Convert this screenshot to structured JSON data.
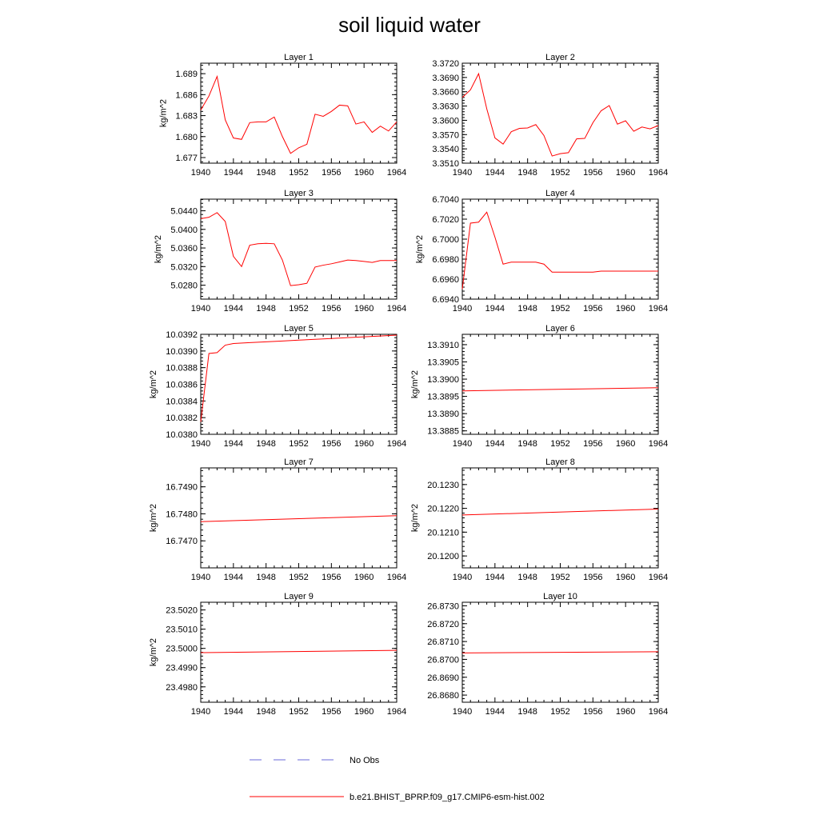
{
  "title": "soil liquid water",
  "legend": {
    "obs_label": "No Obs",
    "obs_color": "#6a6ad8",
    "model_label": "b.e21.BHIST_BPRP.f09_g17.CMIP6-esm-hist.002",
    "model_color": "#ff0000"
  },
  "chart_data": [
    {
      "type": "line",
      "title": "Layer 1",
      "ylabel": "kg/m^2",
      "xlim": [
        1940,
        1964
      ],
      "ylim": [
        1.6762,
        1.6905
      ],
      "xticks": [
        "1940",
        "1944",
        "1948",
        "1952",
        "1956",
        "1960",
        "1964"
      ],
      "yticks": [
        "1.677",
        "1.680",
        "1.683",
        "1.686",
        "1.689"
      ],
      "series": [
        {
          "x": [
            1940,
            1941,
            1942,
            1943,
            1944,
            1945,
            1946,
            1947,
            1948,
            1949,
            1950,
            1951,
            1952,
            1953,
            1954,
            1955,
            1956,
            1957,
            1958,
            1959,
            1960,
            1961,
            1962,
            1963,
            1964
          ],
          "y": [
            1.6838,
            1.6858,
            1.6886,
            1.6824,
            1.6798,
            1.6796,
            1.682,
            1.6821,
            1.6821,
            1.6828,
            1.68,
            1.6776,
            1.6784,
            1.6789,
            1.6832,
            1.6829,
            1.6836,
            1.6845,
            1.6844,
            1.6818,
            1.6821,
            1.6806,
            1.6815,
            1.6808,
            1.6821
          ]
        }
      ]
    },
    {
      "type": "line",
      "title": "Layer 2",
      "ylabel": "",
      "xlim": [
        1940,
        1964
      ],
      "ylim": [
        3.351,
        3.372
      ],
      "xticks": [
        "1940",
        "1944",
        "1948",
        "1952",
        "1956",
        "1960",
        "1964"
      ],
      "yticks": [
        "3.3510",
        "3.3540",
        "3.3570",
        "3.3600",
        "3.3630",
        "3.3660",
        "3.3690",
        "3.3720"
      ],
      "series": [
        {
          "x": [
            1940,
            1941,
            1942,
            1943,
            1944,
            1945,
            1946,
            1947,
            1948,
            1949,
            1950,
            1951,
            1952,
            1953,
            1954,
            1955,
            1956,
            1957,
            1958,
            1959,
            1960,
            1961,
            1962,
            1963,
            1964
          ],
          "y": [
            3.3648,
            3.3664,
            3.3698,
            3.3624,
            3.3563,
            3.355,
            3.3576,
            3.3583,
            3.3584,
            3.3591,
            3.3568,
            3.3525,
            3.353,
            3.3532,
            3.3561,
            3.3562,
            3.3595,
            3.362,
            3.3631,
            3.3592,
            3.3599,
            3.3577,
            3.3586,
            3.3582,
            3.3589
          ]
        }
      ]
    },
    {
      "type": "line",
      "title": "Layer 3",
      "ylabel": "kg/m^2",
      "xlim": [
        1940,
        1964
      ],
      "ylim": [
        5.025,
        5.0465
      ],
      "xticks": [
        "1940",
        "1944",
        "1948",
        "1952",
        "1956",
        "1960",
        "1964"
      ],
      "yticks": [
        "5.0280",
        "5.0320",
        "5.0360",
        "5.0400",
        "5.0440"
      ],
      "series": [
        {
          "x": [
            1940,
            1941,
            1942,
            1943,
            1944,
            1945,
            1946,
            1947,
            1948,
            1949,
            1950,
            1951,
            1952,
            1953,
            1954,
            1955,
            1956,
            1957,
            1958,
            1959,
            1960,
            1961,
            1962,
            1963,
            1964
          ],
          "y": [
            5.0423,
            5.0426,
            5.0436,
            5.0417,
            5.0342,
            5.032,
            5.0366,
            5.0369,
            5.037,
            5.0369,
            5.0334,
            5.0279,
            5.0281,
            5.0284,
            5.0319,
            5.0323,
            5.0326,
            5.033,
            5.0334,
            5.0333,
            5.0331,
            5.0329,
            5.0333,
            5.0333,
            5.0333
          ]
        }
      ]
    },
    {
      "type": "line",
      "title": "Layer 4",
      "ylabel": "kg/m^2",
      "xlim": [
        1940,
        1964
      ],
      "ylim": [
        6.694,
        6.704
      ],
      "xticks": [
        "1940",
        "1944",
        "1948",
        "1952",
        "1956",
        "1960",
        "1964"
      ],
      "yticks": [
        "6.6940",
        "6.6960",
        "6.6980",
        "6.7000",
        "6.7020",
        "6.7040"
      ],
      "series": [
        {
          "x": [
            1940,
            1941,
            1942,
            1943,
            1944,
            1945,
            1946,
            1947,
            1948,
            1949,
            1950,
            1951,
            1952,
            1953,
            1954,
            1955,
            1956,
            1957,
            1958,
            1959,
            1960,
            1961,
            1962,
            1963,
            1964
          ],
          "y": [
            6.695,
            6.7016,
            6.7017,
            6.7027,
            6.7002,
            6.6975,
            6.6977,
            6.6977,
            6.6977,
            6.6977,
            6.6975,
            6.6967,
            6.6967,
            6.6967,
            6.6967,
            6.6967,
            6.6967,
            6.6968,
            6.6968,
            6.6968,
            6.6968,
            6.6968,
            6.6968,
            6.6968,
            6.6968
          ]
        }
      ]
    },
    {
      "type": "line",
      "title": "Layer 5",
      "ylabel": "kg/m^2",
      "xlim": [
        1940,
        1964
      ],
      "ylim": [
        10.038,
        10.0392
      ],
      "xticks": [
        "1940",
        "1944",
        "1948",
        "1952",
        "1956",
        "1960",
        "1964"
      ],
      "yticks": [
        "10.0380",
        "10.0382",
        "10.0384",
        "10.0386",
        "10.0388",
        "10.0390",
        "10.0392"
      ],
      "series": [
        {
          "x": [
            1940,
            1941,
            1942,
            1943,
            1944,
            1946,
            1948,
            1950,
            1952,
            1954,
            1956,
            1958,
            1960,
            1962,
            1964
          ],
          "y": [
            10.03815,
            10.03897,
            10.03898,
            10.03907,
            10.03909,
            10.0391,
            10.03911,
            10.03912,
            10.03913,
            10.03914,
            10.03915,
            10.03916,
            10.03917,
            10.03918,
            10.03919
          ]
        }
      ]
    },
    {
      "type": "line",
      "title": "Layer 6",
      "ylabel": "kg/m^2",
      "xlim": [
        1940,
        1964
      ],
      "ylim": [
        13.3884,
        13.3913
      ],
      "xticks": [
        "1940",
        "1944",
        "1948",
        "1952",
        "1956",
        "1960",
        "1964"
      ],
      "yticks": [
        "13.3885",
        "13.3890",
        "13.3895",
        "13.3900",
        "13.3905",
        "13.3910"
      ],
      "series": [
        {
          "x": [
            1940,
            1964
          ],
          "y": [
            13.38966,
            13.38975
          ]
        }
      ]
    },
    {
      "type": "line",
      "title": "Layer 7",
      "ylabel": "kg/m^2",
      "xlim": [
        1940,
        1964
      ],
      "ylim": [
        16.746,
        16.7497
      ],
      "xticks": [
        "1940",
        "1944",
        "1948",
        "1952",
        "1956",
        "1960",
        "1964"
      ],
      "yticks": [
        "16.7470",
        "16.7480",
        "16.7490"
      ],
      "series": [
        {
          "x": [
            1940,
            1964
          ],
          "y": [
            16.74771,
            16.74793
          ]
        }
      ]
    },
    {
      "type": "line",
      "title": "Layer 8",
      "ylabel": "kg/m^2",
      "xlim": [
        1940,
        1964
      ],
      "ylim": [
        20.1195,
        20.1237
      ],
      "xticks": [
        "1940",
        "1944",
        "1948",
        "1952",
        "1956",
        "1960",
        "1964"
      ],
      "yticks": [
        "20.1200",
        "20.1210",
        "20.1220",
        "20.1230"
      ],
      "series": [
        {
          "x": [
            1940,
            1964
          ],
          "y": [
            20.12172,
            20.12197
          ]
        }
      ]
    },
    {
      "type": "line",
      "title": "Layer 9",
      "ylabel": "kg/m^2",
      "xlim": [
        1940,
        1964
      ],
      "ylim": [
        23.4972,
        23.5024
      ],
      "xticks": [
        "1940",
        "1944",
        "1948",
        "1952",
        "1956",
        "1960",
        "1964"
      ],
      "yticks": [
        "23.4980",
        "23.4990",
        "23.5000",
        "23.5010",
        "23.5020"
      ],
      "series": [
        {
          "x": [
            1940,
            1964
          ],
          "y": [
            23.49978,
            23.4999
          ]
        }
      ]
    },
    {
      "type": "line",
      "title": "Layer 10",
      "ylabel": "",
      "xlim": [
        1940,
        1964
      ],
      "ylim": [
        26.8676,
        26.8732
      ],
      "xticks": [
        "1940",
        "1944",
        "1948",
        "1952",
        "1956",
        "1960",
        "1964"
      ],
      "yticks": [
        "26.8680",
        "26.8690",
        "26.8700",
        "26.8710",
        "26.8720",
        "26.8730"
      ],
      "series": [
        {
          "x": [
            1940,
            1964
          ],
          "y": [
            26.87036,
            26.87043
          ]
        }
      ]
    }
  ]
}
